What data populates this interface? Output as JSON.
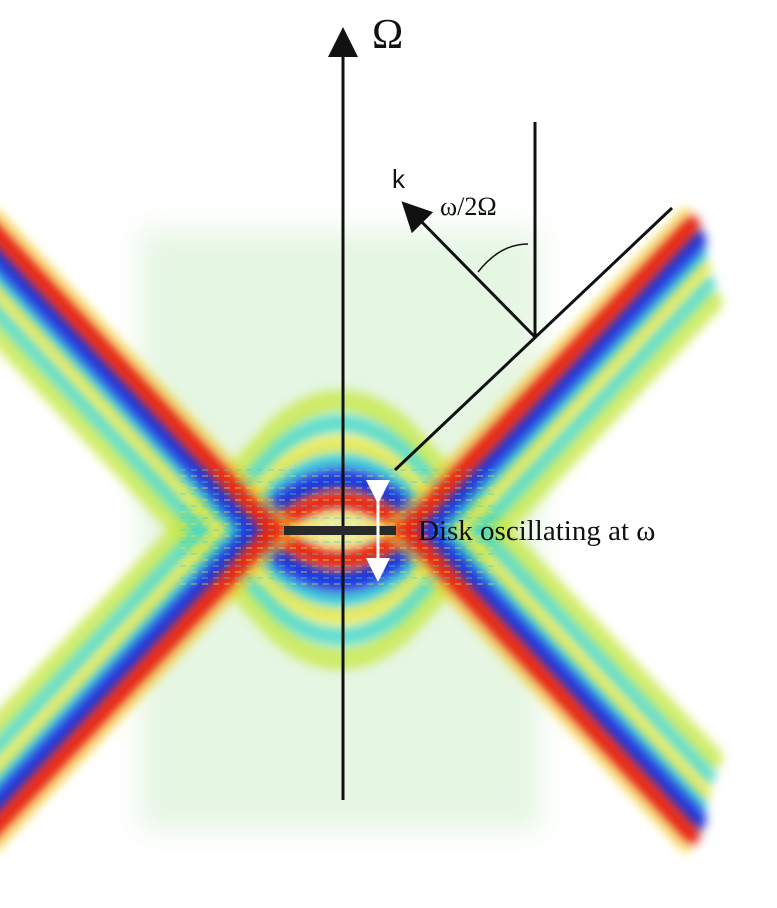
{
  "labels": {
    "axis": "Ω",
    "wave_vector": "k",
    "angle": "ω/2Ω",
    "disk": "Disk oscillating at ω"
  }
}
